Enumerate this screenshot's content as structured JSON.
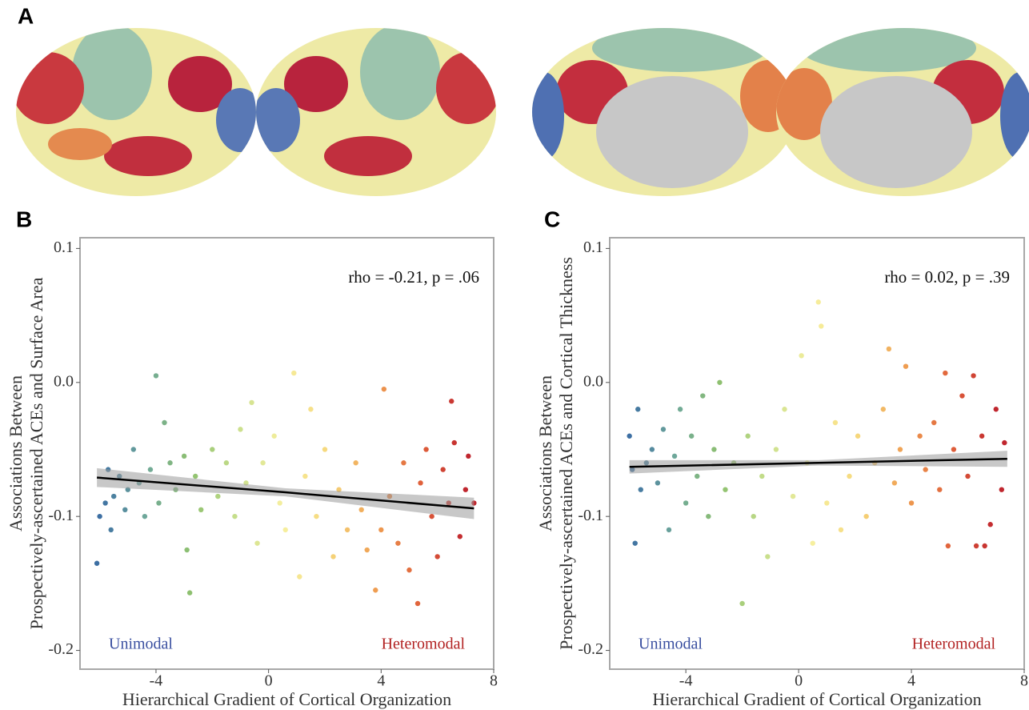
{
  "figure": {
    "panel_a_label": "A"
  },
  "chart_data": [
    {
      "type": "scatter",
      "panel_label": "B",
      "xlabel": "Hierarchical Gradient of Cortical Organization",
      "ylabel": [
        "Associations Between",
        "Prospectively-ascertained ACEs and Surface Area"
      ],
      "annotation": "rho = -0.21, p = .06",
      "left_note": "Unimodal",
      "right_note": "Heteromodal",
      "xlim": [
        -6.7,
        8
      ],
      "ylim": [
        -0.214,
        0.108
      ],
      "xticks": [
        -4,
        0,
        4,
        8
      ],
      "yticks": [
        0.1,
        {
          "value": 0,
          "label": "0.0"
        },
        -0.1,
        -0.2
      ],
      "colormap": [
        "#3d6fa3",
        "#6fa89a",
        "#8fc16f",
        "#c8df8c",
        "#f6ef9f",
        "#f6d77b",
        "#ef9f52",
        "#e0623b",
        "#c0262e"
      ],
      "colormap_range": [
        -6,
        7
      ],
      "x": [
        -6.1,
        -6.0,
        -5.8,
        -5.7,
        -5.6,
        -5.5,
        -5.3,
        -5.1,
        -5.0,
        -4.8,
        -4.6,
        -4.4,
        -4.2,
        -4.0,
        -3.9,
        -3.7,
        -3.5,
        -3.3,
        -3.0,
        -2.9,
        -2.8,
        -2.6,
        -2.4,
        -2.0,
        -1.8,
        -1.5,
        -1.2,
        -1.0,
        -0.8,
        -0.6,
        -0.4,
        -0.2,
        0.2,
        0.4,
        0.6,
        0.9,
        1.1,
        1.3,
        1.5,
        1.7,
        2.0,
        2.3,
        2.5,
        2.8,
        3.1,
        3.3,
        3.5,
        3.8,
        4.0,
        4.1,
        4.3,
        4.6,
        4.8,
        5.0,
        5.3,
        5.4,
        5.6,
        5.8,
        6.0,
        6.2,
        6.4,
        6.5,
        6.6,
        6.8,
        7.0,
        7.1,
        7.3
      ],
      "values": [
        -0.135,
        -0.1,
        -0.09,
        -0.065,
        -0.11,
        -0.085,
        -0.07,
        -0.095,
        -0.08,
        -0.05,
        -0.075,
        -0.1,
        -0.065,
        0.005,
        -0.09,
        -0.03,
        -0.06,
        -0.08,
        -0.055,
        -0.125,
        -0.157,
        -0.07,
        -0.095,
        -0.05,
        -0.085,
        -0.06,
        -0.1,
        -0.035,
        -0.075,
        -0.015,
        -0.12,
        -0.06,
        -0.04,
        -0.09,
        -0.11,
        0.007,
        -0.145,
        -0.07,
        -0.02,
        -0.1,
        -0.05,
        -0.13,
        -0.08,
        -0.11,
        -0.06,
        -0.095,
        -0.125,
        -0.155,
        -0.11,
        -0.005,
        -0.085,
        -0.12,
        -0.06,
        -0.14,
        -0.165,
        -0.075,
        -0.05,
        -0.1,
        -0.13,
        -0.065,
        -0.09,
        -0.014,
        -0.045,
        -0.115,
        -0.08,
        -0.055,
        -0.09
      ],
      "fit": {
        "x": [
          -6.1,
          0.6,
          7.3
        ],
        "values": [
          -0.071,
          -0.082,
          -0.094
        ],
        "lower": [
          -0.078,
          -0.085,
          -0.102
        ],
        "upper": [
          -0.064,
          -0.079,
          -0.086
        ]
      }
    },
    {
      "type": "scatter",
      "panel_label": "C",
      "xlabel": "Hierarchical Gradient of Cortical Organization",
      "ylabel": [
        "Associations Between",
        "Prospectively-ascertained ACEs and Cortical Thickness"
      ],
      "annotation": "rho = 0.02, p = .39",
      "left_note": "Unimodal",
      "right_note": "Heteromodal",
      "xlim": [
        -6.7,
        8
      ],
      "ylim": [
        -0.214,
        0.108
      ],
      "xticks": [
        -4,
        0,
        4,
        8
      ],
      "yticks": [
        0.1,
        {
          "value": 0,
          "label": "0.0"
        },
        -0.1,
        -0.2
      ],
      "colormap": [
        "#3d6fa3",
        "#6fa89a",
        "#8fc16f",
        "#c8df8c",
        "#f6ef9f",
        "#f6d77b",
        "#ef9f52",
        "#e0623b",
        "#c0262e"
      ],
      "colormap_range": [
        -6,
        7
      ],
      "x": [
        -6.0,
        -5.9,
        -5.8,
        -5.7,
        -5.6,
        -5.4,
        -5.2,
        -5.0,
        -4.8,
        -4.6,
        -4.4,
        -4.2,
        -4.0,
        -3.8,
        -3.6,
        -3.4,
        -3.2,
        -3.0,
        -2.8,
        -2.6,
        -2.3,
        -2.0,
        -1.8,
        -1.6,
        -1.3,
        -1.1,
        -0.8,
        -0.5,
        -0.2,
        0.1,
        0.3,
        0.5,
        0.7,
        0.8,
        1.0,
        1.3,
        1.5,
        1.8,
        2.1,
        2.4,
        2.7,
        3.0,
        3.2,
        3.4,
        3.6,
        3.8,
        4.0,
        4.3,
        4.5,
        4.8,
        5.0,
        5.2,
        5.3,
        5.5,
        5.8,
        6.0,
        6.2,
        6.3,
        6.5,
        6.6,
        6.8,
        7.0,
        7.2,
        7.3
      ],
      "values": [
        -0.04,
        -0.065,
        -0.12,
        -0.02,
        -0.08,
        -0.06,
        -0.05,
        -0.075,
        -0.035,
        -0.11,
        -0.055,
        -0.02,
        -0.09,
        -0.04,
        -0.07,
        -0.01,
        -0.1,
        -0.05,
        0.0,
        -0.08,
        -0.06,
        -0.165,
        -0.04,
        -0.1,
        -0.07,
        -0.13,
        -0.05,
        -0.02,
        -0.085,
        0.02,
        -0.06,
        -0.12,
        0.06,
        0.042,
        -0.09,
        -0.03,
        -0.11,
        -0.07,
        -0.04,
        -0.1,
        -0.06,
        -0.02,
        0.025,
        -0.075,
        -0.05,
        0.012,
        -0.09,
        -0.04,
        -0.065,
        -0.03,
        -0.08,
        0.007,
        -0.122,
        -0.05,
        -0.01,
        -0.07,
        0.005,
        -0.122,
        -0.04,
        -0.122,
        -0.106,
        -0.02,
        -0.08,
        -0.045
      ],
      "fit": {
        "x": [
          -6.0,
          0.7,
          7.4
        ],
        "values": [
          -0.063,
          -0.06,
          -0.057
        ],
        "lower": [
          -0.068,
          -0.062,
          -0.063
        ],
        "upper": [
          -0.058,
          -0.058,
          -0.051
        ]
      }
    }
  ]
}
